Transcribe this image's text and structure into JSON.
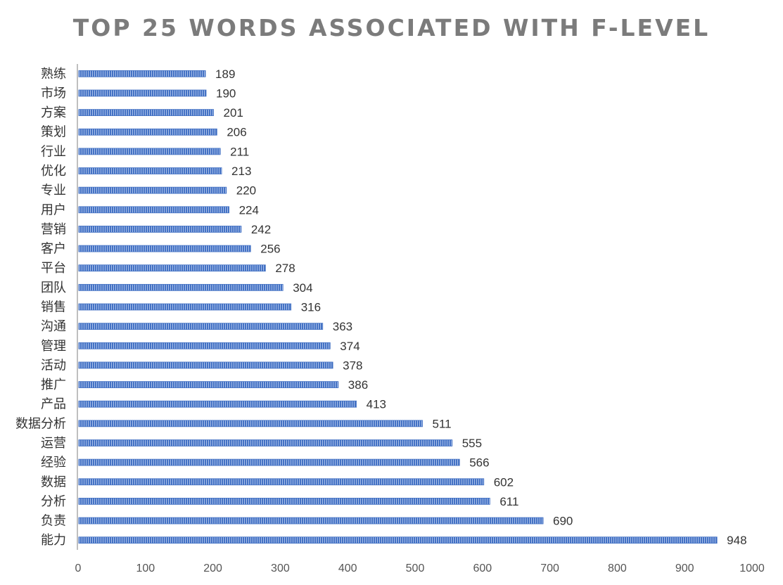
{
  "chart_data": {
    "type": "bar",
    "orientation": "horizontal",
    "title": "TOP 25 WORDS ASSOCIATED WITH F-LEVEL",
    "xlabel": "",
    "ylabel": "",
    "categories": [
      "熟练",
      "市场",
      "方案",
      "策划",
      "行业",
      "优化",
      "专业",
      "用户",
      "营销",
      "客户",
      "平台",
      "团队",
      "销售",
      "沟通",
      "管理",
      "活动",
      "推广",
      "产品",
      "数据分析",
      "运营",
      "经验",
      "数据",
      "分析",
      "负责",
      "能力"
    ],
    "values": [
      189,
      190,
      201,
      206,
      211,
      213,
      220,
      224,
      242,
      256,
      278,
      304,
      316,
      363,
      374,
      378,
      386,
      413,
      511,
      555,
      566,
      602,
      611,
      690,
      948
    ],
    "xlim": [
      0,
      1000
    ],
    "xticks": [
      0,
      100,
      200,
      300,
      400,
      500,
      600,
      700,
      800,
      900,
      1000
    ],
    "data_labels": true,
    "grid": false,
    "legend": "none",
    "bar_color": "#4472c4",
    "bar_stripe_color": "#a9c0ea",
    "axis_color": "#bfbfbf",
    "title_color": "#7b7b7b"
  }
}
